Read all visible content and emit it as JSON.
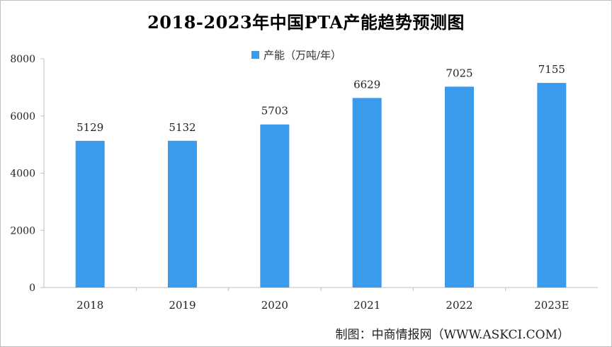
{
  "colors": {
    "bar": "#3a9bec",
    "axis": "#bfbfbf",
    "text": "#222222"
  },
  "chart_data": {
    "type": "bar",
    "title": "2018-2023年中国PTA产能趋势预测图",
    "categories": [
      "2018",
      "2019",
      "2020",
      "2021",
      "2022",
      "2023E"
    ],
    "series": [
      {
        "name": "产能（万吨/年）",
        "values": [
          5129,
          5132,
          5703,
          6629,
          7025,
          7155
        ]
      }
    ],
    "ylim": [
      0,
      8000
    ],
    "yticks": [
      0,
      2000,
      4000,
      6000,
      8000
    ],
    "legend_position": "top-center",
    "grid": false
  },
  "credit": "制图：中商情报网（WWW.ASKCI.COM）"
}
